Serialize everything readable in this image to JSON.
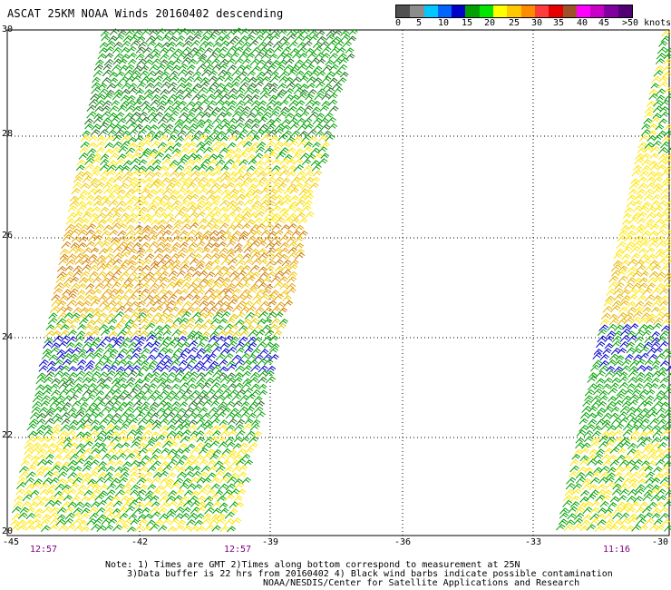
{
  "title": "ASCAT 25KM NOAA Winds 20160402 descending",
  "legend": {
    "colors": [
      "#505050",
      "#8c8c8c",
      "#00c8ff",
      "#0064ff",
      "#0000c8",
      "#00a000",
      "#00e600",
      "#ffff00",
      "#ffc800",
      "#ff8c00",
      "#ff3c3c",
      "#e60000",
      "#a05028",
      "#ff00ff",
      "#c800c8",
      "#8000a0",
      "#500070"
    ],
    "labels": [
      "0",
      "5",
      "10",
      "15",
      "20",
      "25",
      "30",
      "35",
      "40",
      "45",
      ">50 knots"
    ]
  },
  "axes": {
    "lat_labels": [
      "30",
      "28",
      "26",
      "24",
      "22",
      "20"
    ],
    "lon_labels": [
      "-45",
      "-42",
      "-39",
      "-36",
      "-33",
      "-30"
    ]
  },
  "times": [
    "12:57",
    "12:57",
    "11:16"
  ],
  "notes": {
    "line1": "Note: 1) Times are GMT 2)Times along bottom correspond to measurement at 25N",
    "line2": "3)Data buffer is 22 hrs from 20160402 4) Black wind barbs indicate possible contamination",
    "line3": "NOAA/NESDIS/Center for Satellite Applications and Research"
  }
}
